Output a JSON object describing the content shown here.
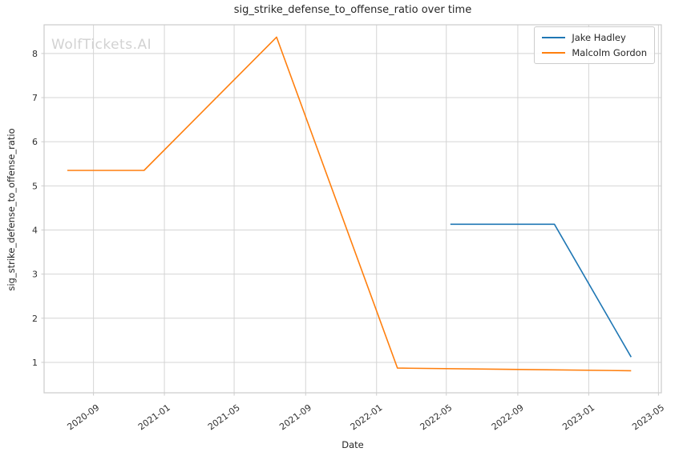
{
  "watermark": {
    "text": "WolfTickets.AI",
    "color": "#d2d2d2"
  },
  "chart_data": {
    "type": "line",
    "title": "sig_strike_defense_to_offense_ratio over time",
    "xlabel": "Date",
    "ylabel": "sig_strike_defense_to_offense_ratio",
    "x_ticks": [
      "2020-09",
      "2021-01",
      "2021-05",
      "2021-09",
      "2022-01",
      "2022-05",
      "2022-09",
      "2023-01",
      "2023-05"
    ],
    "y_ticks": [
      1,
      2,
      3,
      4,
      5,
      6,
      7,
      8
    ],
    "xlim": [
      "2020-06-08",
      "2023-05-06"
    ],
    "ylim": [
      0.31,
      8.65
    ],
    "grid": true,
    "legend_position": "upper right",
    "series": [
      {
        "name": "Jake Hadley",
        "color": "#1f77b4",
        "points": [
          {
            "date": "2022-05-08",
            "value": 4.13
          },
          {
            "date": "2022-11-03",
            "value": 4.13
          },
          {
            "date": "2023-03-15",
            "value": 1.12
          }
        ]
      },
      {
        "name": "Malcolm Gordon",
        "color": "#ff7f0e",
        "points": [
          {
            "date": "2020-07-18",
            "value": 5.35
          },
          {
            "date": "2020-11-27",
            "value": 5.35
          },
          {
            "date": "2021-07-13",
            "value": 8.37
          },
          {
            "date": "2022-02-06",
            "value": 0.87
          },
          {
            "date": "2023-03-15",
            "value": 0.81
          }
        ]
      }
    ],
    "styles": {
      "grid_color": "#d4d4d4",
      "spine_color": "#cccccc",
      "tick_label_color": "#303030",
      "line_width": 1.6
    }
  }
}
